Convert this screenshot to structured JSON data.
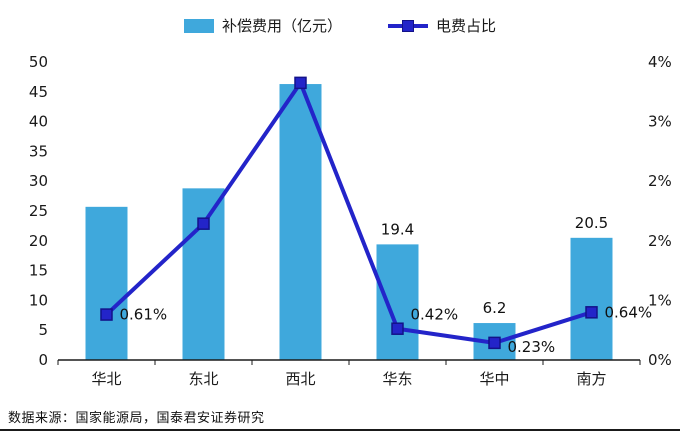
{
  "legend": [
    {
      "label": "补偿费用（亿元）",
      "type": "bar"
    },
    {
      "label": "电费占比",
      "type": "line"
    }
  ],
  "colors": {
    "bar": "#3FA8DC",
    "line": "#2324C9",
    "marker_border": "#131289",
    "axis": "#1a1a1a",
    "rule": "#1a1a1a"
  },
  "chart_data": {
    "type": "combo",
    "categories": [
      "华北",
      "东北",
      "西北",
      "华东",
      "华中",
      "南方"
    ],
    "series": [
      {
        "name": "补偿费用（亿元）",
        "type": "bar",
        "axis": "left",
        "values": [
          25.7,
          28.8,
          46.3,
          19.4,
          6.2,
          20.5
        ],
        "labels": [
          null,
          null,
          null,
          "19.4",
          "6.2",
          "20.5"
        ]
      },
      {
        "name": "电费占比",
        "type": "line",
        "axis": "right",
        "values": [
          0.61,
          1.83,
          3.72,
          0.42,
          0.23,
          0.64
        ],
        "labels": [
          "0.61%",
          null,
          null,
          "0.42%",
          "0.23%",
          "0.64%"
        ]
      }
    ],
    "left_axis": {
      "min": 0,
      "max": 50,
      "ticks": [
        "50",
        "45",
        "40",
        "35",
        "30",
        "25",
        "20",
        "15",
        "10",
        "5",
        "0"
      ]
    },
    "right_axis": {
      "min": 0,
      "max": 4,
      "ticks": [
        "4%",
        "3%",
        "2%",
        "2%",
        "1%",
        "0%"
      ]
    },
    "grid": false,
    "legend_position": "top",
    "title": "",
    "layout": {
      "line_label_offsets": [
        [
          13,
          5
        ],
        null,
        null,
        [
          13,
          -9
        ],
        [
          13,
          9
        ],
        [
          13,
          5
        ]
      ],
      "bar_label_dy": -10
    }
  },
  "source": "数据来源：国家能源局，国泰君安证券研究"
}
